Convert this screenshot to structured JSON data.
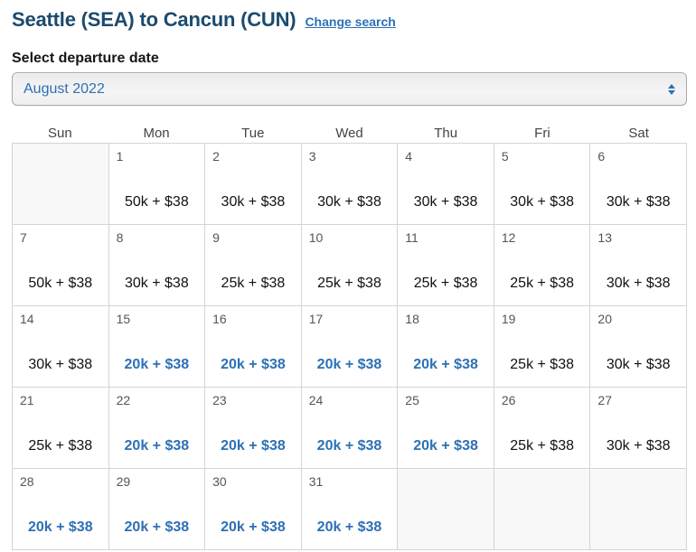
{
  "header": {
    "title": "Seattle (SEA) to Cancun (CUN)",
    "change_search_label": "Change search"
  },
  "departure": {
    "label": "Select departure date",
    "selected_month": "August 2022"
  },
  "calendar": {
    "weekday_headers": [
      "Sun",
      "Mon",
      "Tue",
      "Wed",
      "Thu",
      "Fri",
      "Sat"
    ],
    "weeks": [
      [
        {
          "type": "empty",
          "day": "",
          "price": ""
        },
        {
          "type": "standard",
          "day": "1",
          "price": "50k + $38"
        },
        {
          "type": "standard",
          "day": "2",
          "price": "30k + $38"
        },
        {
          "type": "standard",
          "day": "3",
          "price": "30k + $38"
        },
        {
          "type": "standard",
          "day": "4",
          "price": "30k + $38"
        },
        {
          "type": "standard",
          "day": "5",
          "price": "30k + $38"
        },
        {
          "type": "standard",
          "day": "6",
          "price": "30k + $38"
        }
      ],
      [
        {
          "type": "standard",
          "day": "7",
          "price": "50k + $38"
        },
        {
          "type": "standard",
          "day": "8",
          "price": "30k + $38"
        },
        {
          "type": "standard",
          "day": "9",
          "price": "25k + $38"
        },
        {
          "type": "standard",
          "day": "10",
          "price": "25k + $38"
        },
        {
          "type": "standard",
          "day": "11",
          "price": "25k + $38"
        },
        {
          "type": "standard",
          "day": "12",
          "price": "25k + $38"
        },
        {
          "type": "standard",
          "day": "13",
          "price": "30k + $38"
        }
      ],
      [
        {
          "type": "standard",
          "day": "14",
          "price": "30k + $38"
        },
        {
          "type": "deal",
          "day": "15",
          "price": "20k + $38"
        },
        {
          "type": "deal",
          "day": "16",
          "price": "20k + $38"
        },
        {
          "type": "deal",
          "day": "17",
          "price": "20k + $38"
        },
        {
          "type": "deal",
          "day": "18",
          "price": "20k + $38"
        },
        {
          "type": "standard",
          "day": "19",
          "price": "25k + $38"
        },
        {
          "type": "standard",
          "day": "20",
          "price": "30k + $38"
        }
      ],
      [
        {
          "type": "standard",
          "day": "21",
          "price": "25k + $38"
        },
        {
          "type": "deal",
          "day": "22",
          "price": "20k + $38"
        },
        {
          "type": "deal",
          "day": "23",
          "price": "20k + $38"
        },
        {
          "type": "deal",
          "day": "24",
          "price": "20k + $38"
        },
        {
          "type": "deal",
          "day": "25",
          "price": "20k + $38"
        },
        {
          "type": "standard",
          "day": "26",
          "price": "25k + $38"
        },
        {
          "type": "standard",
          "day": "27",
          "price": "30k + $38"
        }
      ],
      [
        {
          "type": "deal",
          "day": "28",
          "price": "20k + $38"
        },
        {
          "type": "deal",
          "day": "29",
          "price": "20k + $38"
        },
        {
          "type": "deal",
          "day": "30",
          "price": "20k + $38"
        },
        {
          "type": "deal",
          "day": "31",
          "price": "20k + $38"
        },
        {
          "type": "empty",
          "day": "",
          "price": ""
        },
        {
          "type": "empty",
          "day": "",
          "price": ""
        },
        {
          "type": "empty",
          "day": "",
          "price": ""
        }
      ]
    ]
  },
  "colors": {
    "title_navy": "#1c4a6d",
    "link_blue": "#2e70b5",
    "deal_price_blue": "#2e70b5",
    "standard_price_black": "#111111",
    "grid_line": "#d4d4d4",
    "empty_cell_bg": "#f8f8f8"
  }
}
